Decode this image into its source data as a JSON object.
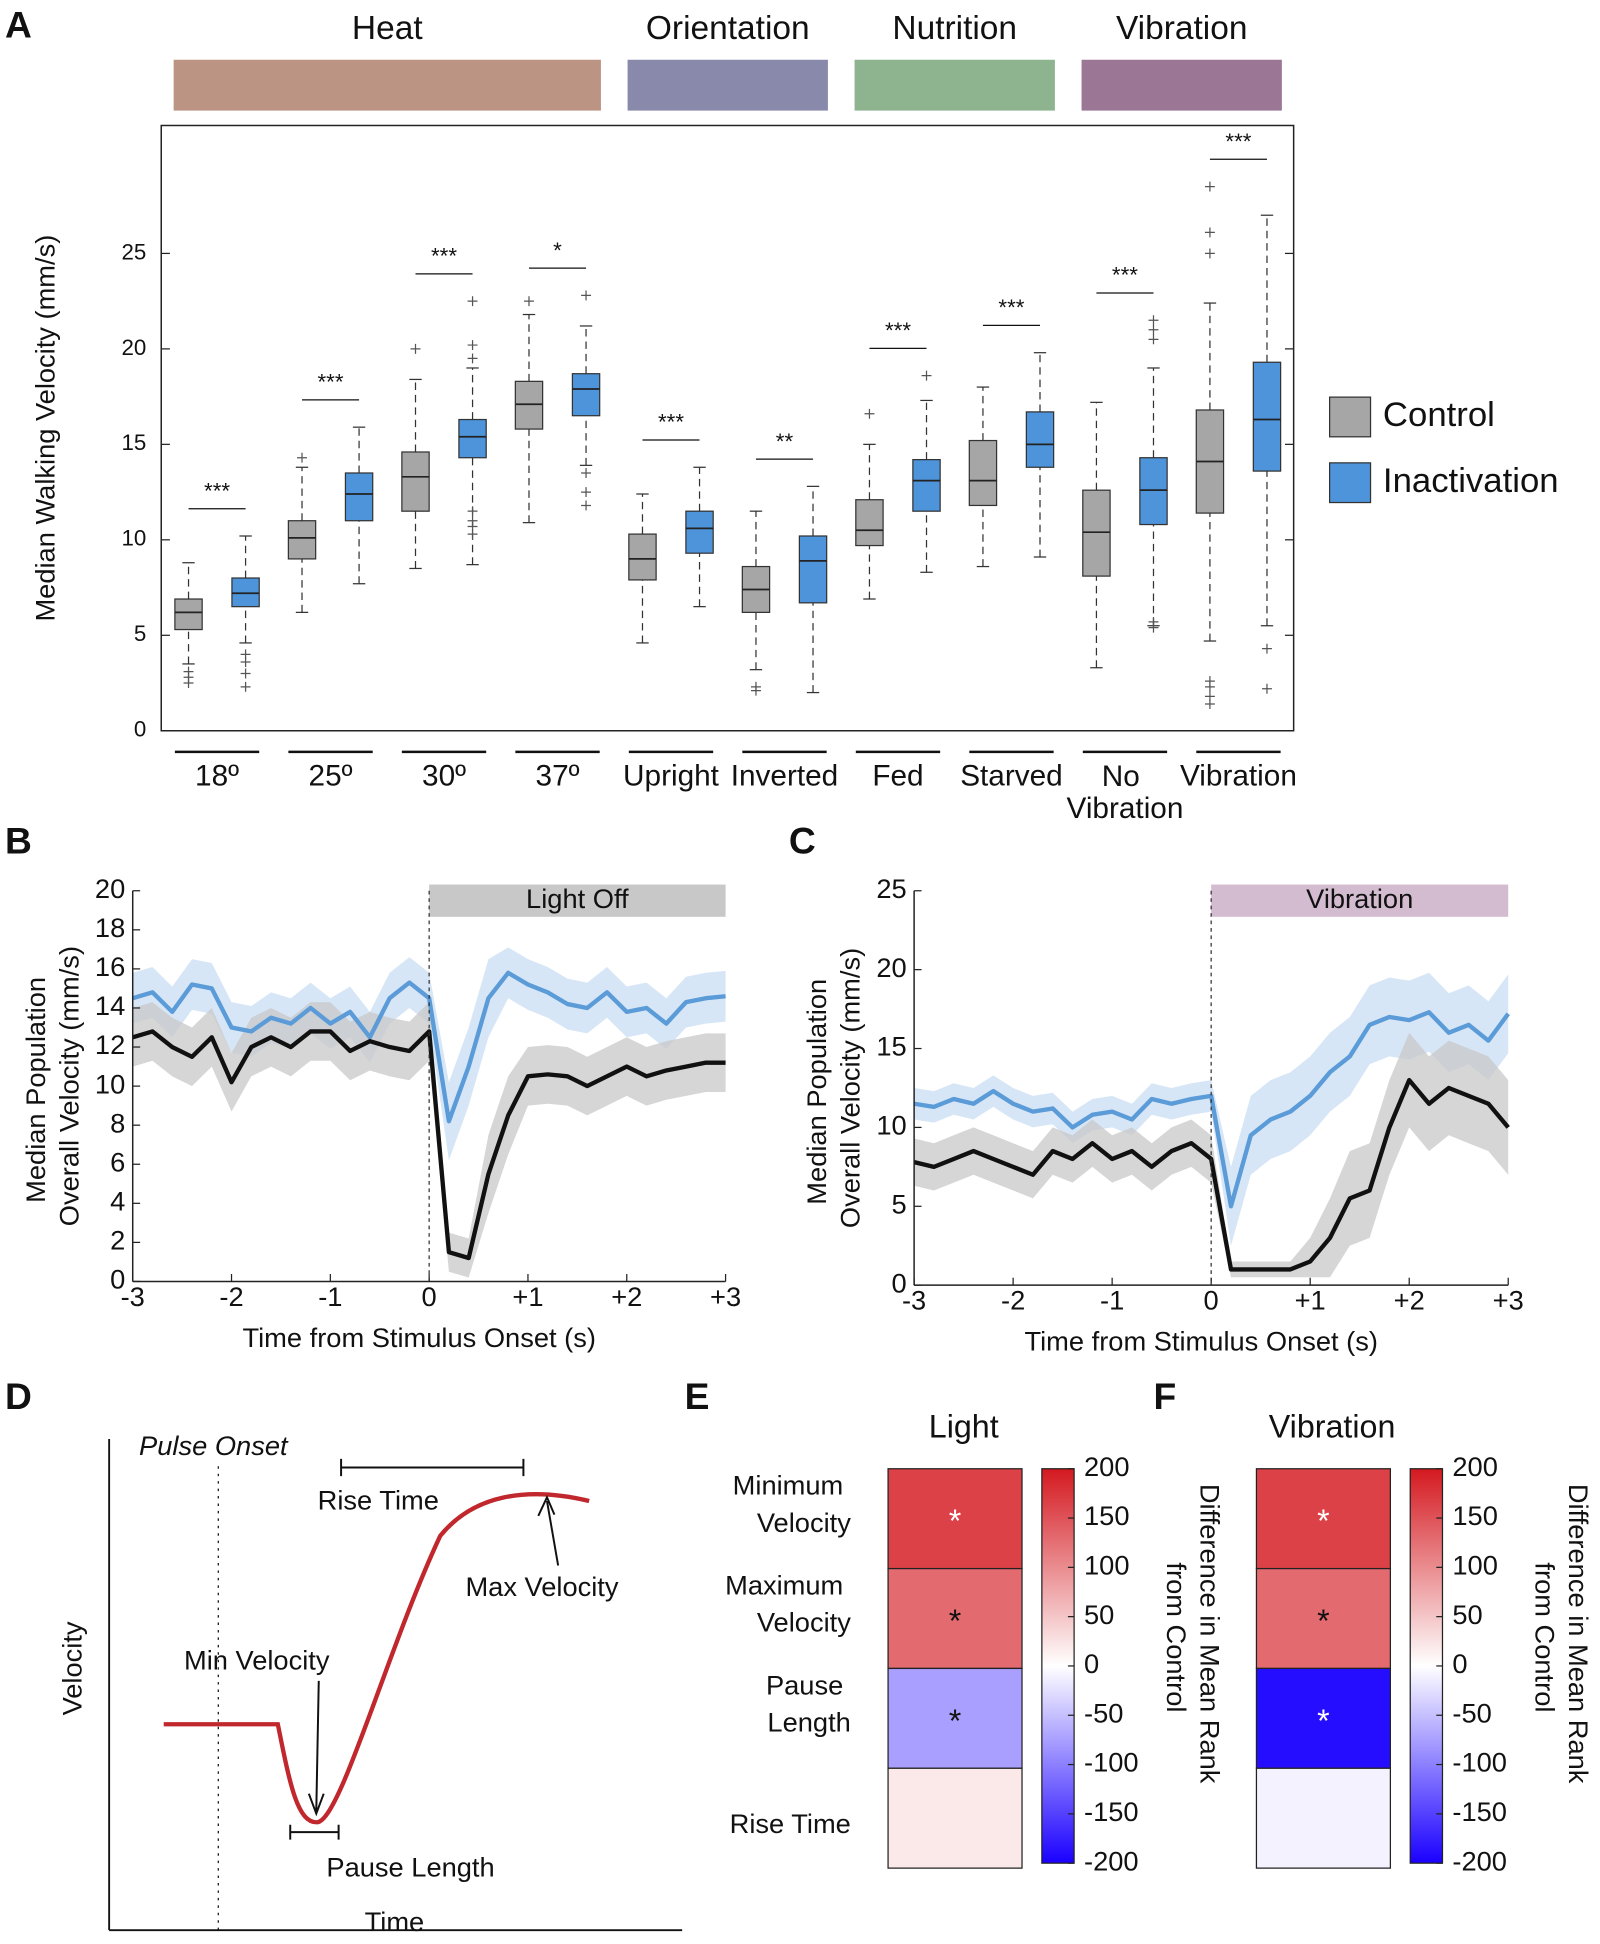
{
  "chart_data": [
    {
      "type": "box",
      "panel": "A",
      "ylabel": "Median Walking Velocity (mm/s)",
      "ylim": [
        0,
        31.7
      ],
      "yticks": [
        0,
        5,
        10,
        15,
        20,
        25
      ],
      "categories": [
        "18º",
        "25º",
        "30º",
        "37º",
        "Upright",
        "Inverted",
        "Fed",
        "Starved",
        "No Vibration",
        "Vibration"
      ],
      "groups": [
        {
          "name": "Heat",
          "color": "#bb9484",
          "span": 4
        },
        {
          "name": "Orientation",
          "color": "#8889ab",
          "span": 2
        },
        {
          "name": "Nutrition",
          "color": "#8db38f",
          "span": 2
        },
        {
          "name": "Vibration",
          "color": "#9c7695",
          "span": 2
        }
      ],
      "significance": [
        "***",
        "***",
        "***",
        "*",
        "***",
        "**",
        "***",
        "***",
        "***",
        "***"
      ],
      "legend": "right",
      "series": [
        {
          "name": "Control",
          "color": "#a6a6a6",
          "boxes": [
            {
              "min": 3.5,
              "q1": 5.3,
              "median": 6.2,
              "q3": 6.9,
              "max": 8.8,
              "outliers": [
                2.5,
                2.8,
                3.1
              ]
            },
            {
              "min": 6.2,
              "q1": 9.0,
              "median": 10.1,
              "q3": 11.0,
              "max": 13.8,
              "outliers": [
                14.3
              ]
            },
            {
              "min": 8.5,
              "q1": 11.5,
              "median": 13.3,
              "q3": 14.6,
              "max": 18.4,
              "outliers": [
                20.0
              ]
            },
            {
              "min": 10.9,
              "q1": 15.8,
              "median": 17.1,
              "q3": 18.3,
              "max": 21.8,
              "outliers": [
                22.5
              ]
            },
            {
              "min": 4.6,
              "q1": 7.9,
              "median": 9.0,
              "q3": 10.3,
              "max": 12.4,
              "outliers": []
            },
            {
              "min": 3.2,
              "q1": 6.2,
              "median": 7.4,
              "q3": 8.6,
              "max": 11.5,
              "outliers": [
                2.1,
                2.3
              ]
            },
            {
              "min": 6.9,
              "q1": 9.7,
              "median": 10.5,
              "q3": 12.1,
              "max": 15.0,
              "outliers": [
                16.6
              ]
            },
            {
              "min": 8.6,
              "q1": 11.8,
              "median": 13.1,
              "q3": 15.2,
              "max": 18.0,
              "outliers": []
            },
            {
              "min": 3.3,
              "q1": 8.1,
              "median": 10.4,
              "q3": 12.6,
              "max": 17.2,
              "outliers": []
            },
            {
              "min": 4.7,
              "q1": 11.4,
              "median": 14.1,
              "q3": 16.8,
              "max": 22.4,
              "outliers": [
                1.4,
                1.8,
                2.3,
                2.6,
                25.0,
                26.1,
                28.5
              ]
            }
          ]
        },
        {
          "name": "Inactivation",
          "color": "#4d94db",
          "boxes": [
            {
              "min": 4.6,
              "q1": 6.5,
              "median": 7.2,
              "q3": 8.0,
              "max": 10.2,
              "outliers": [
                2.3,
                3.0,
                3.6,
                4.0
              ]
            },
            {
              "min": 7.7,
              "q1": 11.0,
              "median": 12.4,
              "q3": 13.5,
              "max": 15.9,
              "outliers": []
            },
            {
              "min": 8.7,
              "q1": 14.3,
              "median": 15.4,
              "q3": 16.3,
              "max": 19.0,
              "outliers": [
                10.3,
                10.7,
                11.0,
                11.5,
                19.5,
                20.2,
                22.5
              ]
            },
            {
              "min": 13.9,
              "q1": 16.5,
              "median": 17.9,
              "q3": 18.7,
              "max": 21.2,
              "outliers": [
                11.8,
                12.5,
                13.5,
                22.8
              ]
            },
            {
              "min": 6.5,
              "q1": 9.3,
              "median": 10.6,
              "q3": 11.5,
              "max": 13.8,
              "outliers": []
            },
            {
              "min": 2.0,
              "q1": 6.7,
              "median": 8.9,
              "q3": 10.2,
              "max": 12.8,
              "outliers": []
            },
            {
              "min": 8.3,
              "q1": 11.5,
              "median": 13.1,
              "q3": 14.2,
              "max": 17.3,
              "outliers": [
                18.6
              ]
            },
            {
              "min": 9.1,
              "q1": 13.8,
              "median": 15.0,
              "q3": 16.7,
              "max": 19.8,
              "outliers": []
            },
            {
              "min": 5.5,
              "q1": 10.8,
              "median": 12.6,
              "q3": 14.3,
              "max": 19.0,
              "outliers": [
                5.4,
                5.7,
                20.5,
                21.0,
                21.5
              ]
            },
            {
              "min": 5.5,
              "q1": 13.6,
              "median": 16.3,
              "q3": 19.3,
              "max": 27.0,
              "outliers": [
                2.2,
                4.3
              ]
            }
          ]
        }
      ]
    },
    {
      "type": "line",
      "panel": "B",
      "ylabel": "Median Population Overall Velocity (mm/s)",
      "xlabel": "Time from Stimulus Onset (s)",
      "x": [
        -3,
        -2.8,
        -2.6,
        -2.4,
        -2.2,
        -2,
        -1.8,
        -1.6,
        -1.4,
        -1.2,
        -1,
        -0.8,
        -0.6,
        -0.4,
        -0.2,
        0,
        0.2,
        0.4,
        0.6,
        0.8,
        1,
        1.2,
        1.4,
        1.6,
        1.8,
        2,
        2.2,
        2.4,
        2.6,
        2.8,
        3
      ],
      "xlim": [
        -3,
        3
      ],
      "xticks": [
        -3,
        -2,
        -1,
        0,
        {
          "value": 1,
          "label": "+1"
        },
        {
          "value": 2,
          "label": "+2"
        },
        {
          "value": 3,
          "label": "+3"
        }
      ],
      "ylim": [
        0,
        20
      ],
      "yticks": [
        0,
        2,
        4,
        6,
        8,
        10,
        12,
        14,
        16,
        18,
        20
      ],
      "stimulus": {
        "label": "Light Off",
        "start": 0,
        "end": 3,
        "color": "#c8c8c8"
      },
      "series": [
        {
          "color": "#5a9bd8",
          "band_color": "#c9def3",
          "values": [
            14.5,
            14.8,
            13.8,
            15.2,
            15.0,
            13.0,
            12.8,
            13.5,
            13.2,
            14.0,
            13.2,
            13.8,
            12.5,
            14.5,
            15.3,
            14.5,
            8.2,
            11.0,
            14.5,
            15.8,
            15.2,
            14.8,
            14.2,
            14.0,
            14.8,
            13.8,
            14.0,
            13.2,
            14.3,
            14.5,
            14.6
          ],
          "lower": [
            13.2,
            13.5,
            12.5,
            13.9,
            13.7,
            11.7,
            11.5,
            12.2,
            11.9,
            12.7,
            11.9,
            12.5,
            11.2,
            13.2,
            14.0,
            13.2,
            6.2,
            9.0,
            12.5,
            14.5,
            13.9,
            13.5,
            12.9,
            12.7,
            13.5,
            12.5,
            12.7,
            11.9,
            13.0,
            13.2,
            13.3
          ],
          "upper": [
            15.8,
            16.1,
            15.1,
            16.5,
            16.3,
            14.3,
            14.1,
            14.8,
            14.5,
            15.3,
            14.5,
            15.1,
            13.8,
            15.8,
            16.6,
            15.8,
            10.2,
            13.0,
            16.5,
            17.1,
            16.5,
            16.1,
            15.5,
            15.3,
            16.1,
            15.1,
            15.3,
            14.5,
            15.6,
            15.8,
            15.9
          ]
        },
        {
          "color": "#111111",
          "band_color": "#c8c8c8",
          "values": [
            12.5,
            12.8,
            12.0,
            11.5,
            12.5,
            10.2,
            12.0,
            12.5,
            12.0,
            12.8,
            12.8,
            11.8,
            12.3,
            12.0,
            11.8,
            12.8,
            1.5,
            1.2,
            5.5,
            8.5,
            10.5,
            10.6,
            10.5,
            10.0,
            10.5,
            11.0,
            10.5,
            10.8,
            11.0,
            11.2,
            11.2
          ],
          "lower": [
            11.0,
            11.3,
            10.5,
            10.0,
            11.0,
            8.7,
            10.5,
            11.0,
            10.5,
            11.3,
            11.3,
            10.3,
            10.8,
            10.5,
            10.3,
            11.3,
            0.5,
            0.2,
            3.5,
            6.5,
            9.0,
            9.1,
            9.0,
            8.5,
            9.0,
            9.5,
            9.0,
            9.3,
            9.5,
            9.7,
            9.7
          ],
          "upper": [
            14.0,
            14.3,
            13.5,
            13.0,
            14.0,
            11.7,
            13.5,
            14.0,
            13.5,
            14.3,
            14.3,
            13.3,
            13.8,
            13.5,
            13.3,
            14.3,
            2.5,
            2.2,
            7.5,
            10.5,
            12.0,
            12.1,
            12.0,
            11.5,
            12.0,
            12.5,
            12.0,
            12.3,
            12.5,
            12.7,
            12.7
          ]
        }
      ]
    },
    {
      "type": "line",
      "panel": "C",
      "ylabel": "Median Population Overall Velocity (mm/s)",
      "xlabel": "Time from Stimulus Onset (s)",
      "x": [
        -3,
        -2.8,
        -2.6,
        -2.4,
        -2.2,
        -2,
        -1.8,
        -1.6,
        -1.4,
        -1.2,
        -1,
        -0.8,
        -0.6,
        -0.4,
        -0.2,
        0,
        0.2,
        0.4,
        0.6,
        0.8,
        1,
        1.2,
        1.4,
        1.6,
        1.8,
        2,
        2.2,
        2.4,
        2.6,
        2.8,
        3
      ],
      "xlim": [
        -3,
        3
      ],
      "xticks": [
        -3,
        -2,
        -1,
        0,
        {
          "value": 1,
          "label": "+1"
        },
        {
          "value": 2,
          "label": "+2"
        },
        {
          "value": 3,
          "label": "+3"
        }
      ],
      "ylim": [
        0,
        25
      ],
      "yticks": [
        0,
        5,
        10,
        15,
        20,
        25
      ],
      "stimulus": {
        "label": "Vibration",
        "start": 0,
        "end": 3,
        "color": "#d3bccf"
      },
      "series": [
        {
          "color": "#5a9bd8",
          "band_color": "#c9def3",
          "values": [
            11.5,
            11.3,
            11.8,
            11.5,
            12.3,
            11.5,
            11.0,
            11.2,
            10.0,
            10.8,
            11.0,
            10.5,
            11.8,
            11.5,
            11.8,
            12.0,
            5.0,
            9.5,
            10.5,
            11.0,
            12.0,
            13.5,
            14.5,
            16.5,
            17.0,
            16.8,
            17.3,
            16.0,
            16.5,
            15.5,
            17.2
          ],
          "lower": [
            10.5,
            10.3,
            10.8,
            10.5,
            11.3,
            10.5,
            10.0,
            10.2,
            9.0,
            9.8,
            10.0,
            9.5,
            10.8,
            10.5,
            10.8,
            11.0,
            2.5,
            7.0,
            8.0,
            8.5,
            9.5,
            11.0,
            12.0,
            14.0,
            14.5,
            14.3,
            14.8,
            13.5,
            14.0,
            13.0,
            14.7
          ],
          "upper": [
            12.5,
            12.3,
            12.8,
            12.5,
            13.3,
            12.5,
            12.0,
            12.2,
            11.0,
            11.8,
            12.0,
            11.5,
            12.8,
            12.5,
            12.8,
            13.0,
            7.5,
            12.0,
            13.0,
            13.5,
            14.5,
            16.0,
            17.0,
            19.0,
            19.5,
            19.3,
            19.8,
            18.5,
            19.0,
            18.0,
            19.7
          ]
        },
        {
          "color": "#111111",
          "band_color": "#c8c8c8",
          "values": [
            7.8,
            7.5,
            8.0,
            8.5,
            8.0,
            7.5,
            7.0,
            8.5,
            8.0,
            9.0,
            8.0,
            8.5,
            7.5,
            8.5,
            9.0,
            8.0,
            1.0,
            1.0,
            1.0,
            1.0,
            1.5,
            3.0,
            5.5,
            6.0,
            10.0,
            13.0,
            11.5,
            12.5,
            12.0,
            11.5,
            10.0
          ],
          "lower": [
            6.3,
            6.0,
            6.5,
            7.0,
            6.5,
            6.0,
            5.5,
            7.0,
            6.5,
            7.5,
            6.5,
            7.0,
            6.0,
            7.0,
            7.5,
            6.5,
            0.5,
            0.5,
            0.5,
            0.5,
            0.5,
            0.5,
            2.5,
            3.0,
            7.0,
            10.0,
            8.5,
            9.5,
            9.0,
            8.5,
            7.0
          ],
          "upper": [
            9.3,
            9.0,
            9.5,
            10.0,
            9.5,
            9.0,
            8.5,
            10.0,
            9.5,
            10.5,
            9.5,
            10.0,
            9.0,
            10.0,
            10.5,
            9.5,
            1.5,
            1.5,
            1.5,
            1.5,
            3.0,
            5.5,
            8.5,
            9.0,
            13.0,
            16.0,
            14.5,
            15.5,
            15.0,
            14.5,
            13.0
          ]
        }
      ]
    },
    {
      "type": "schematic",
      "panel": "D",
      "color": "#c0282d",
      "labels": {
        "onset": "Pulse Onset",
        "rise": "Rise Time",
        "max": "Max Velocity",
        "min": "Min Velocity",
        "pause": "Pause Length",
        "ylabel": "Velocity",
        "xlabel": "Time"
      }
    },
    {
      "type": "heatmap",
      "panel": "E",
      "title": "Light",
      "rows": [
        "Minimum Velocity",
        "Maximum Velocity",
        "Pause Length",
        "Rise Time"
      ],
      "values": [
        165,
        130,
        -75,
        20
      ],
      "marks": [
        "*",
        "*",
        "*",
        null
      ],
      "clim": [
        -200,
        200
      ],
      "cticks": [
        -200,
        -150,
        -100,
        -50,
        0,
        50,
        100,
        150,
        200
      ],
      "cmap": [
        "#1a00ff",
        "#ffffff",
        "#d41920"
      ],
      "colorbar_label": "Difference in Mean Rank from Control"
    },
    {
      "type": "heatmap",
      "panel": "F",
      "title": "Vibration",
      "values": [
        165,
        130,
        -190,
        -10
      ],
      "marks": [
        "*",
        "*",
        "*",
        null
      ],
      "clim": [
        -200,
        200
      ],
      "cticks": [
        -200,
        -150,
        -100,
        -50,
        0,
        50,
        100,
        150,
        200
      ],
      "cmap": [
        "#1a00ff",
        "#ffffff",
        "#d41920"
      ],
      "colorbar_label": "Difference in Mean Rank from Control"
    }
  ]
}
